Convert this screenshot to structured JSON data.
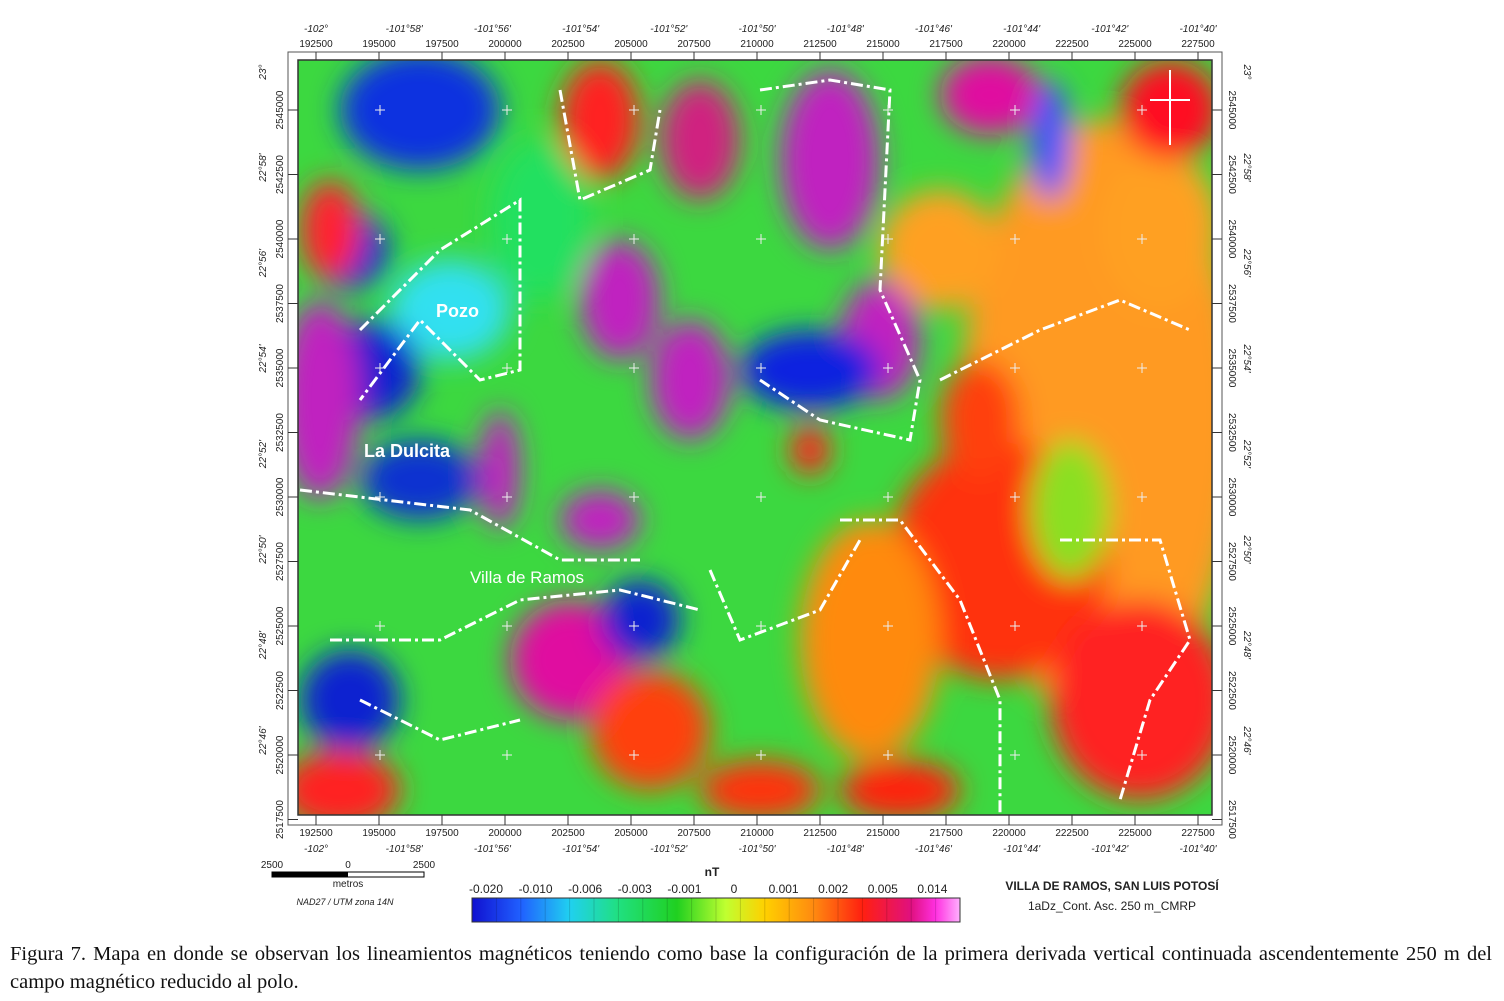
{
  "map": {
    "top_degrees": [
      "-102°",
      "-101°58'",
      "-101°56'",
      "-101°54'",
      "-101°52'",
      "-101°50'",
      "-101°48'",
      "-101°46'",
      "-101°44'",
      "-101°42'",
      "-101°40'"
    ],
    "eastings": [
      "192500",
      "195000",
      "197500",
      "200000",
      "202500",
      "205000",
      "207500",
      "210000",
      "212500",
      "215000",
      "217500",
      "220000",
      "222500",
      "225000",
      "227500"
    ],
    "left_degrees": [
      "23°",
      "22°58'",
      "22°56'",
      "22°54'",
      "22°52'",
      "22°50'",
      "22°48'",
      "22°46'"
    ],
    "northings": [
      "2545000",
      "2542500",
      "2540000",
      "2537500",
      "2535000",
      "2532500",
      "2530000",
      "2527500",
      "2525000",
      "2522500",
      "2520000",
      "2517500"
    ],
    "places": [
      "Pozo",
      "La Dulcita",
      "Villa de Ramos"
    ]
  },
  "scale_bar": {
    "labels": [
      "2500",
      "0",
      "2500"
    ],
    "unit": "metros",
    "datum": "NAD27 / UTM zona 14N"
  },
  "legend": {
    "unit": "nT",
    "labels": [
      "-0.020",
      "-0.010",
      "-0.006",
      "-0.003",
      "-0.001",
      "0",
      "0.001",
      "0.002",
      "0.005",
      "0.014"
    ]
  },
  "title": {
    "name": "VILLA DE RAMOS, SAN LUIS POTOSÍ",
    "subtitle": "1aDz_Cont. Asc. 250 m_CMRP"
  },
  "caption": "Figura 7. Mapa en donde se observan los lineamientos magnéticos teniendo como base la configuración de la primera derivada vertical continuada ascendentemente 250 m del campo magnético reducido al polo."
}
